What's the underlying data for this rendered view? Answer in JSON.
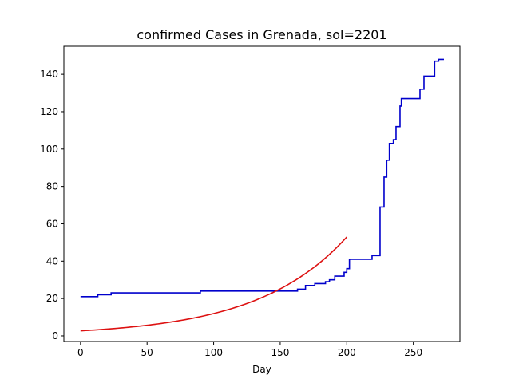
{
  "chart_data": {
    "type": "line",
    "title": "confirmed Cases in Grenada, sol=2201",
    "xlabel": "Day",
    "ylabel": "",
    "xlim": [
      -12.5,
      285
    ],
    "ylim": [
      -3,
      155
    ],
    "xticks": [
      0,
      50,
      100,
      150,
      200,
      250
    ],
    "yticks": [
      0,
      20,
      40,
      60,
      80,
      100,
      120,
      140
    ],
    "grid": false,
    "series": [
      {
        "color": "#0000cc",
        "style": "step",
        "points": [
          [
            0,
            21
          ],
          [
            13,
            21
          ],
          [
            13,
            22
          ],
          [
            23,
            22
          ],
          [
            23,
            23
          ],
          [
            90,
            23
          ],
          [
            90,
            24
          ],
          [
            163,
            24
          ],
          [
            163,
            25
          ],
          [
            169,
            25
          ],
          [
            169,
            27
          ],
          [
            176,
            27
          ],
          [
            176,
            28
          ],
          [
            184,
            28
          ],
          [
            184,
            29
          ],
          [
            187,
            29
          ],
          [
            187,
            30
          ],
          [
            191,
            30
          ],
          [
            191,
            32
          ],
          [
            198,
            32
          ],
          [
            198,
            34
          ],
          [
            200,
            34
          ],
          [
            200,
            36
          ],
          [
            202,
            36
          ],
          [
            202,
            41
          ],
          [
            219,
            41
          ],
          [
            219,
            43
          ],
          [
            225,
            43
          ],
          [
            225,
            69
          ],
          [
            228,
            69
          ],
          [
            228,
            85
          ],
          [
            230,
            85
          ],
          [
            230,
            94
          ],
          [
            232,
            94
          ],
          [
            232,
            103
          ],
          [
            235,
            103
          ],
          [
            235,
            105
          ],
          [
            237,
            105
          ],
          [
            237,
            112
          ],
          [
            240,
            112
          ],
          [
            240,
            123
          ],
          [
            241,
            123
          ],
          [
            241,
            127
          ],
          [
            255,
            127
          ],
          [
            255,
            132
          ],
          [
            258,
            132
          ],
          [
            258,
            139
          ],
          [
            266,
            139
          ],
          [
            266,
            147
          ],
          [
            269,
            147
          ],
          [
            269,
            148
          ],
          [
            273,
            148
          ]
        ]
      },
      {
        "color": "#dd1111",
        "style": "line",
        "model": "exponential",
        "a": 2.7,
        "b": 0.01488,
        "x_range": [
          0,
          200
        ]
      }
    ]
  }
}
